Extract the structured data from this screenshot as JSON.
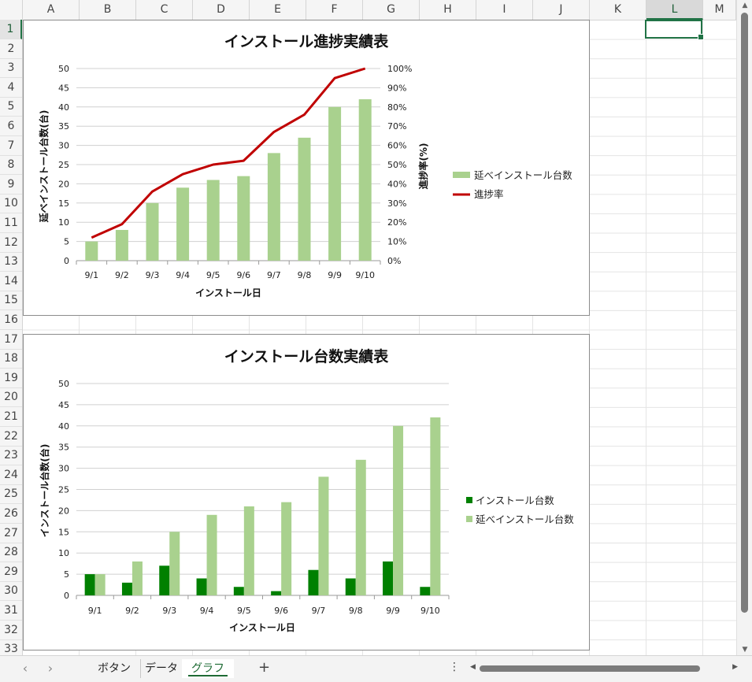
{
  "sheet": {
    "columns": [
      "A",
      "B",
      "C",
      "D",
      "E",
      "F",
      "G",
      "H",
      "I",
      "J",
      "K",
      "L",
      "M"
    ],
    "selected_column": "L",
    "rows": [
      "1",
      "2",
      "3",
      "4",
      "5",
      "6",
      "7",
      "8",
      "9",
      "10",
      "11",
      "12",
      "13",
      "14",
      "15",
      "16",
      "17",
      "18",
      "19",
      "20",
      "21",
      "22",
      "23",
      "24",
      "25",
      "26",
      "27",
      "28",
      "29",
      "30",
      "31",
      "32",
      "33"
    ],
    "selected_row": "1"
  },
  "tabs": {
    "items": [
      {
        "label": "ボタン",
        "active": false
      },
      {
        "label": "データ",
        "active": false
      },
      {
        "label": "グラフ",
        "active": true
      }
    ],
    "add_label": "+",
    "prev_icon": "chevron-left-icon",
    "next_icon": "chevron-right-icon",
    "more_icon": "vertical-dots-icon"
  },
  "colors": {
    "light_green": "#a9d18e",
    "dark_green": "#008000",
    "red_line": "#c00000",
    "selection_green": "#217346"
  },
  "chart_data": [
    {
      "type": "bar",
      "title": "インストール進捗実績表",
      "xlabel": "インストール日",
      "ylabel": "延べインストール台数(台)",
      "y2label": "進捗率(%)",
      "categories": [
        "9/1",
        "9/2",
        "9/3",
        "9/4",
        "9/5",
        "9/6",
        "9/7",
        "9/8",
        "9/9",
        "9/10"
      ],
      "ylim": [
        0,
        50
      ],
      "yticks": [
        "0",
        "5",
        "10",
        "15",
        "20",
        "25",
        "30",
        "35",
        "40",
        "45",
        "50"
      ],
      "y2lim": [
        0,
        100
      ],
      "y2ticks": [
        "0%",
        "10%",
        "20%",
        "30%",
        "40%",
        "50%",
        "60%",
        "70%",
        "80%",
        "90%",
        "100%"
      ],
      "grid": true,
      "legend_position": "right",
      "series": [
        {
          "name": "延べインストール台数",
          "type": "bar",
          "axis": "left",
          "color": "#a9d18e",
          "values": [
            5,
            8,
            15,
            19,
            21,
            22,
            28,
            32,
            40,
            42
          ]
        },
        {
          "name": "進捗率",
          "type": "line",
          "axis": "right",
          "color": "#c00000",
          "values": [
            12,
            19,
            36,
            45,
            50,
            52,
            67,
            76,
            95,
            100
          ]
        }
      ]
    },
    {
      "type": "bar",
      "title": "インストール台数実績表",
      "xlabel": "インストール日",
      "ylabel": "インストール台数(台)",
      "categories": [
        "9/1",
        "9/2",
        "9/3",
        "9/4",
        "9/5",
        "9/6",
        "9/7",
        "9/8",
        "9/9",
        "9/10"
      ],
      "ylim": [
        0,
        50
      ],
      "yticks": [
        "0",
        "5",
        "10",
        "15",
        "20",
        "25",
        "30",
        "35",
        "40",
        "45",
        "50"
      ],
      "grid": true,
      "legend_position": "right",
      "series": [
        {
          "name": "インストール台数",
          "type": "bar",
          "color": "#008000",
          "values": [
            5,
            3,
            7,
            4,
            2,
            1,
            6,
            4,
            8,
            2
          ]
        },
        {
          "name": "延べインストール台数",
          "type": "bar",
          "color": "#a9d18e",
          "values": [
            5,
            8,
            15,
            19,
            21,
            22,
            28,
            32,
            40,
            42
          ]
        }
      ]
    }
  ]
}
